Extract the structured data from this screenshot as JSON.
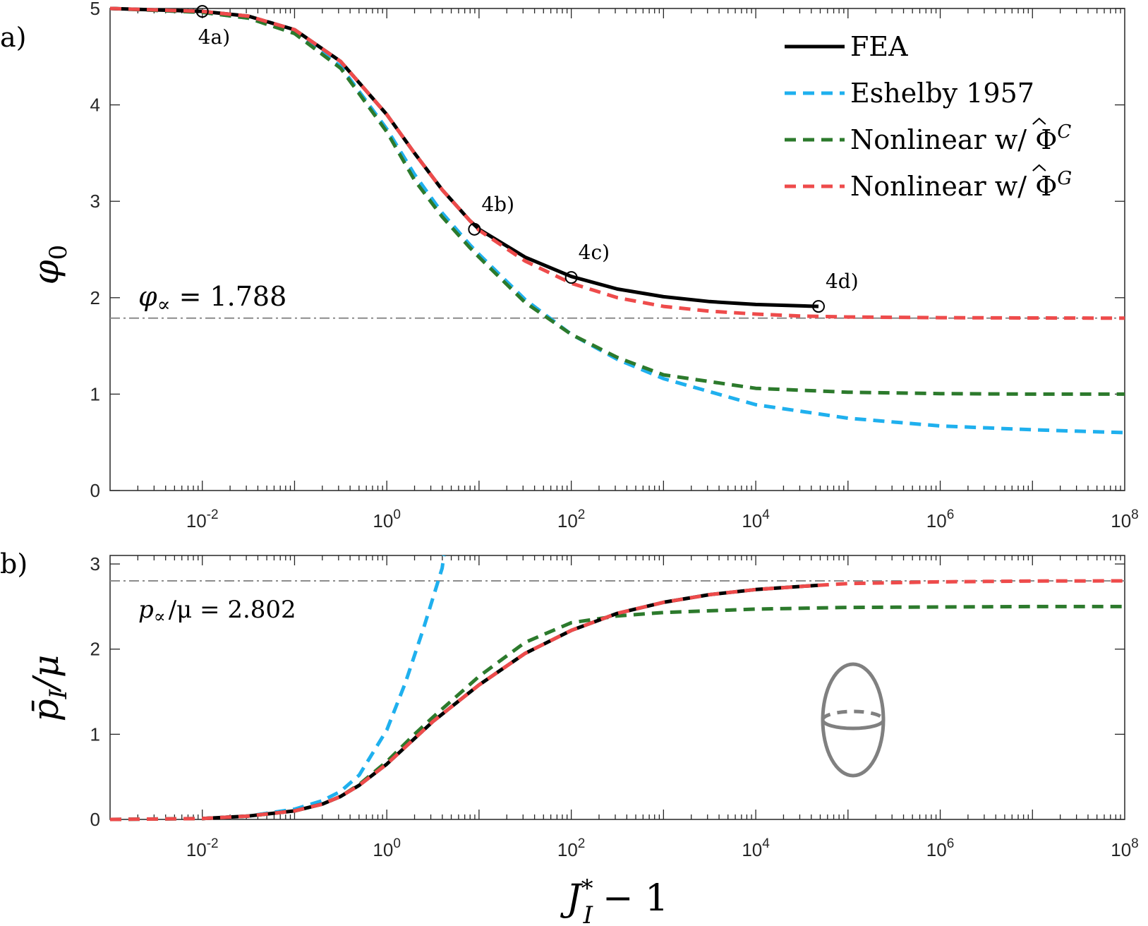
{
  "chart_data": [
    {
      "panel_label": "a)",
      "type": "line",
      "xscale": "log",
      "xlim_exp": [
        -3,
        8
      ],
      "ylim": [
        0,
        5
      ],
      "xticks": [
        {
          "base": "10",
          "exp": "-2"
        },
        {
          "base": "10",
          "exp": "0"
        },
        {
          "base": "10",
          "exp": "2"
        },
        {
          "base": "10",
          "exp": "4"
        },
        {
          "base": "10",
          "exp": "6"
        },
        {
          "base": "10",
          "exp": "8"
        }
      ],
      "yticks": [
        "0",
        "1",
        "2",
        "3",
        "4",
        "5"
      ],
      "ylabel_symbol": "φ",
      "ylabel_sub": "0",
      "asymptote": {
        "y": 1.788,
        "symbol": "φ",
        "sub": "∝",
        "value_text": "= 1.788"
      },
      "series": [
        {
          "name": "FEA",
          "color": "#000000",
          "style": "solid",
          "x_exp": [
            -3,
            -2,
            -1.5,
            -1,
            -0.5,
            0,
            0.3,
            0.6,
            0.9,
            1,
            1.5,
            2,
            2.5,
            3,
            3.5,
            4,
            4.5,
            4.68
          ],
          "y": [
            5,
            4.97,
            4.92,
            4.78,
            4.45,
            3.9,
            3.5,
            3.12,
            2.8,
            2.71,
            2.42,
            2.22,
            2.09,
            2.01,
            1.96,
            1.93,
            1.915,
            1.91
          ]
        },
        {
          "name": "Eshelby 1957",
          "color": "#1FB0EE",
          "style": "dashed",
          "x_exp": [
            -3,
            -2,
            -1.5,
            -1,
            -0.5,
            0,
            0.3,
            0.6,
            0.9,
            1,
            1.5,
            2,
            2.5,
            3,
            4,
            5,
            6,
            7,
            8
          ],
          "y": [
            5,
            4.96,
            4.9,
            4.75,
            4.4,
            3.75,
            3.28,
            2.88,
            2.55,
            2.45,
            1.98,
            1.62,
            1.36,
            1.16,
            0.89,
            0.75,
            0.67,
            0.63,
            0.6
          ]
        },
        {
          "name": "Nonlinear w/ Φ^C",
          "color": "#2C7A2C",
          "style": "dashed",
          "x_exp": [
            -3,
            -2,
            -1.5,
            -1,
            -0.5,
            0,
            0.3,
            0.6,
            0.9,
            1,
            1.5,
            2,
            2.5,
            3,
            4,
            5,
            6,
            7,
            8
          ],
          "y": [
            5,
            4.96,
            4.9,
            4.74,
            4.38,
            3.72,
            3.22,
            2.84,
            2.52,
            2.42,
            1.95,
            1.62,
            1.38,
            1.2,
            1.06,
            1.02,
            1.005,
            1.0,
            1.0
          ]
        },
        {
          "name": "Nonlinear w/ Φ^G",
          "color": "#EE4B4B",
          "style": "dashed",
          "x_exp": [
            -3,
            -2,
            -1.5,
            -1,
            -0.5,
            0,
            0.3,
            0.6,
            0.9,
            1,
            1.5,
            2,
            2.5,
            3,
            3.5,
            4,
            4.5,
            5,
            6,
            7,
            8
          ],
          "y": [
            5,
            4.97,
            4.92,
            4.78,
            4.45,
            3.9,
            3.5,
            3.12,
            2.8,
            2.7,
            2.38,
            2.15,
            2.0,
            1.91,
            1.86,
            1.83,
            1.81,
            1.8,
            1.793,
            1.79,
            1.788
          ]
        }
      ],
      "markers": [
        {
          "label": "4a)",
          "x_exp": -2,
          "y": 4.97
        },
        {
          "label": "4b)",
          "x_exp": 0.95,
          "y": 2.71
        },
        {
          "label": "4c)",
          "x_exp": 2,
          "y": 2.21
        },
        {
          "label": "4d)",
          "x_exp": 4.68,
          "y": 1.91
        }
      ],
      "legend": {
        "placement": "top-right",
        "entries": [
          {
            "name": "FEA",
            "text": "FEA",
            "hat": false
          },
          {
            "name": "Eshelby 1957",
            "text": "Eshelby 1957",
            "hat": false
          },
          {
            "name": "Nonlinear w/ Φ^C",
            "text": "Nonlinear w/ ",
            "hat": true,
            "symbol": "Φ",
            "sup": "C"
          },
          {
            "name": "Nonlinear w/ Φ^G",
            "text": "Nonlinear w/ ",
            "hat": true,
            "symbol": "Φ",
            "sup": "G"
          }
        ]
      }
    },
    {
      "panel_label": "b)",
      "type": "line",
      "xscale": "log",
      "xlim_exp": [
        -3,
        8
      ],
      "ylim": [
        0,
        3.1
      ],
      "xticks": [
        {
          "base": "10",
          "exp": "-2"
        },
        {
          "base": "10",
          "exp": "0"
        },
        {
          "base": "10",
          "exp": "2"
        },
        {
          "base": "10",
          "exp": "4"
        },
        {
          "base": "10",
          "exp": "6"
        },
        {
          "base": "10",
          "exp": "8"
        }
      ],
      "yticks": [
        "0",
        "1",
        "2",
        "3"
      ],
      "ylabel_symbol": "p̄",
      "ylabel_sub": "I",
      "ylabel_tail": "/μ",
      "xlabel_symbol": "J",
      "xlabel_sup": "*",
      "xlabel_sub": "I",
      "xlabel_tail": "− 1",
      "asymptote": {
        "y": 2.802,
        "symbol": "p",
        "sub": "∝",
        "value_text": "/μ = 2.802"
      },
      "series": [
        {
          "name": "FEA",
          "color": "#000000",
          "style": "solid",
          "x_exp": [
            -2,
            -1.5,
            -1,
            -0.7,
            -0.5,
            -0.3,
            0,
            0.3,
            0.5,
            1,
            1.5,
            2,
            2.5,
            3,
            3.5,
            4,
            4.68
          ],
          "y": [
            0.01,
            0.04,
            0.1,
            0.18,
            0.27,
            0.4,
            0.65,
            0.95,
            1.15,
            1.58,
            1.95,
            2.22,
            2.42,
            2.55,
            2.64,
            2.7,
            2.75
          ]
        },
        {
          "name": "Eshelby 1957",
          "color": "#1FB0EE",
          "style": "dashed",
          "x_exp": [
            -3,
            -2,
            -1.5,
            -1,
            -0.7,
            -0.5,
            -0.3,
            0,
            0.2,
            0.4,
            0.6,
            0.62
          ],
          "y": [
            0,
            0.01,
            0.04,
            0.12,
            0.22,
            0.33,
            0.52,
            1.05,
            1.6,
            2.25,
            2.95,
            3.1
          ]
        },
        {
          "name": "Nonlinear w/ Φ^C",
          "color": "#2C7A2C",
          "style": "dashed",
          "x_exp": [
            -3,
            -2,
            -1.5,
            -1,
            -0.7,
            -0.5,
            -0.3,
            0,
            0.3,
            0.5,
            1,
            1.5,
            2,
            2.5,
            3,
            4,
            5,
            6,
            7,
            8
          ],
          "y": [
            0,
            0.01,
            0.04,
            0.1,
            0.18,
            0.27,
            0.41,
            0.68,
            1.0,
            1.2,
            1.68,
            2.08,
            2.31,
            2.39,
            2.43,
            2.47,
            2.49,
            2.495,
            2.5,
            2.5
          ]
        },
        {
          "name": "Nonlinear w/ Φ^G",
          "color": "#EE4B4B",
          "style": "dashed",
          "x_exp": [
            -3,
            -2,
            -1.5,
            -1,
            -0.7,
            -0.5,
            -0.3,
            0,
            0.3,
            0.5,
            1,
            1.5,
            2,
            2.5,
            3,
            3.5,
            4,
            4.68,
            5,
            6,
            7,
            8
          ],
          "y": [
            0,
            0.01,
            0.04,
            0.1,
            0.18,
            0.27,
            0.4,
            0.65,
            0.95,
            1.15,
            1.58,
            1.95,
            2.22,
            2.42,
            2.55,
            2.64,
            2.7,
            2.75,
            2.77,
            2.79,
            2.8,
            2.802
          ]
        }
      ],
      "inset": "ellipsoid-icon"
    }
  ]
}
